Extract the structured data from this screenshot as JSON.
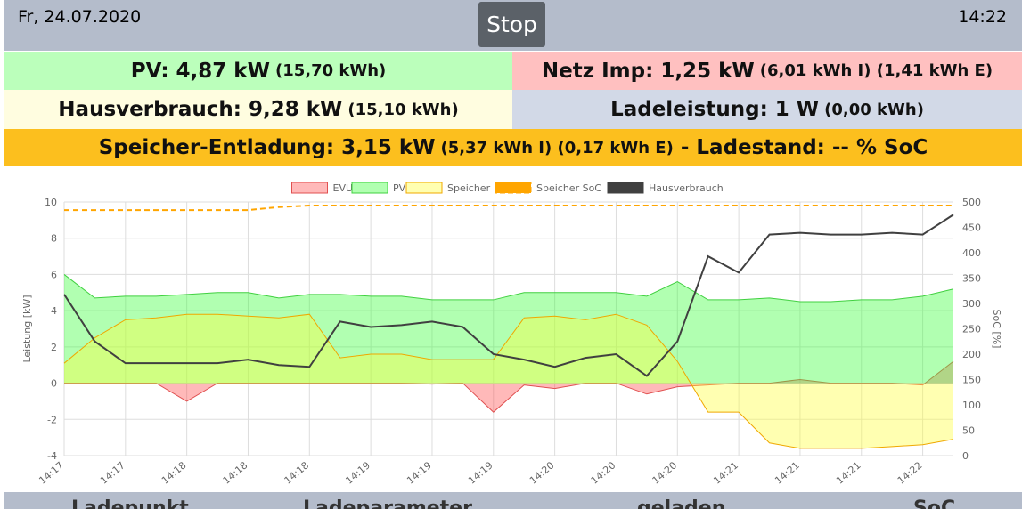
{
  "header": {
    "date": "Fr, 24.07.2020",
    "button": "Stop",
    "time": "14:22"
  },
  "summary": {
    "pv": {
      "label": "PV: 4,87 kW",
      "detail": "(15,70 kWh)"
    },
    "netz": {
      "label": "Netz Imp: 1,25 kW",
      "detail": "(6,01 kWh I) (1,41 kWh E)"
    },
    "haus": {
      "label": "Hausverbrauch: 9,28 kW",
      "detail": "(15,10 kWh)"
    },
    "lade": {
      "label": "Ladeleistung: 1 W",
      "detail": "(0,00 kWh)"
    },
    "speicher": {
      "label": "Speicher-Entladung: 3,15 kW",
      "detail": "(5,37 kWh I) (0,17 kWh E)",
      "soc": "- Ladestand: -- % SoC"
    }
  },
  "chart_data": {
    "type": "line",
    "ylabel": "Leistung [kW]",
    "y2label": "SoC [%]",
    "categories": [
      "14:17",
      null,
      "14:17",
      null,
      "14:18",
      null,
      "14:18",
      null,
      "14:18",
      null,
      "14:19",
      null,
      "14:19",
      null,
      "14:19",
      null,
      "14:20",
      null,
      "14:20",
      null,
      "14:20",
      null,
      "14:21",
      null,
      "14:21",
      null,
      "14:21",
      null,
      "14:22",
      null
    ],
    "ylim": [
      -4,
      10
    ],
    "yticks": [
      -4,
      -2,
      0,
      2,
      4,
      6,
      8,
      10
    ],
    "y2lim": [
      0,
      500
    ],
    "y2ticks": [
      0,
      50,
      100,
      150,
      200,
      250,
      300,
      350,
      400,
      450,
      500
    ],
    "grid": true,
    "legend": "top",
    "series": [
      {
        "name": "EVU",
        "color": "#e05050",
        "fill": "rgba(255,80,80,0.4)",
        "values": [
          0,
          0,
          0,
          0,
          -1.0,
          0,
          0,
          0,
          0,
          0,
          0,
          0,
          -0.05,
          0,
          -1.6,
          -0.1,
          -0.3,
          0,
          0,
          -0.6,
          -0.2,
          -0.1,
          0,
          0,
          0.2,
          0,
          0,
          0,
          -0.1,
          1.2
        ]
      },
      {
        "name": "PV",
        "color": "#40d040",
        "fill": "rgba(60,255,60,0.4)",
        "values": [
          6.0,
          4.7,
          4.8,
          4.8,
          4.9,
          5.0,
          5.0,
          4.7,
          4.9,
          4.9,
          4.8,
          4.8,
          4.6,
          4.6,
          4.6,
          5.0,
          5.0,
          5.0,
          5.0,
          4.8,
          5.6,
          4.6,
          4.6,
          4.7,
          4.5,
          4.5,
          4.6,
          4.6,
          4.8,
          5.2
        ]
      },
      {
        "name": "Speicher",
        "color": "#f0a800",
        "fill": "rgba(255,255,60,0.4)",
        "values": [
          1.1,
          2.5,
          3.5,
          3.6,
          3.8,
          3.8,
          3.7,
          3.6,
          3.8,
          1.4,
          1.6,
          1.6,
          1.3,
          1.3,
          1.3,
          3.6,
          3.7,
          3.5,
          3.8,
          3.2,
          1.2,
          -1.6,
          -1.6,
          -3.3,
          -3.6,
          -3.6,
          -3.6,
          -3.5,
          -3.4,
          -3.1
        ]
      },
      {
        "name": "Speicher SoC",
        "color": "#ffa500",
        "axis": "y2",
        "dashed": true,
        "values": [
          484,
          484,
          484,
          484,
          484,
          484,
          484,
          490,
          493,
          493,
          493,
          493,
          493,
          493,
          493,
          493,
          493,
          493,
          493,
          493,
          493,
          493,
          493,
          493,
          493,
          493,
          493,
          493,
          493,
          493
        ]
      },
      {
        "name": "Hausverbrauch",
        "color": "#404040",
        "values": [
          4.9,
          2.3,
          1.1,
          1.1,
          1.1,
          1.1,
          1.3,
          1.0,
          0.9,
          3.4,
          3.1,
          3.2,
          3.4,
          3.1,
          1.6,
          1.3,
          0.9,
          1.4,
          1.6,
          0.4,
          2.3,
          7.0,
          6.1,
          8.2,
          8.3,
          8.2,
          8.2,
          8.3,
          8.2,
          9.3
        ]
      }
    ]
  },
  "tabs": [
    "Ladepunkt",
    "Ladeparameter",
    "geladen",
    "SoC"
  ]
}
